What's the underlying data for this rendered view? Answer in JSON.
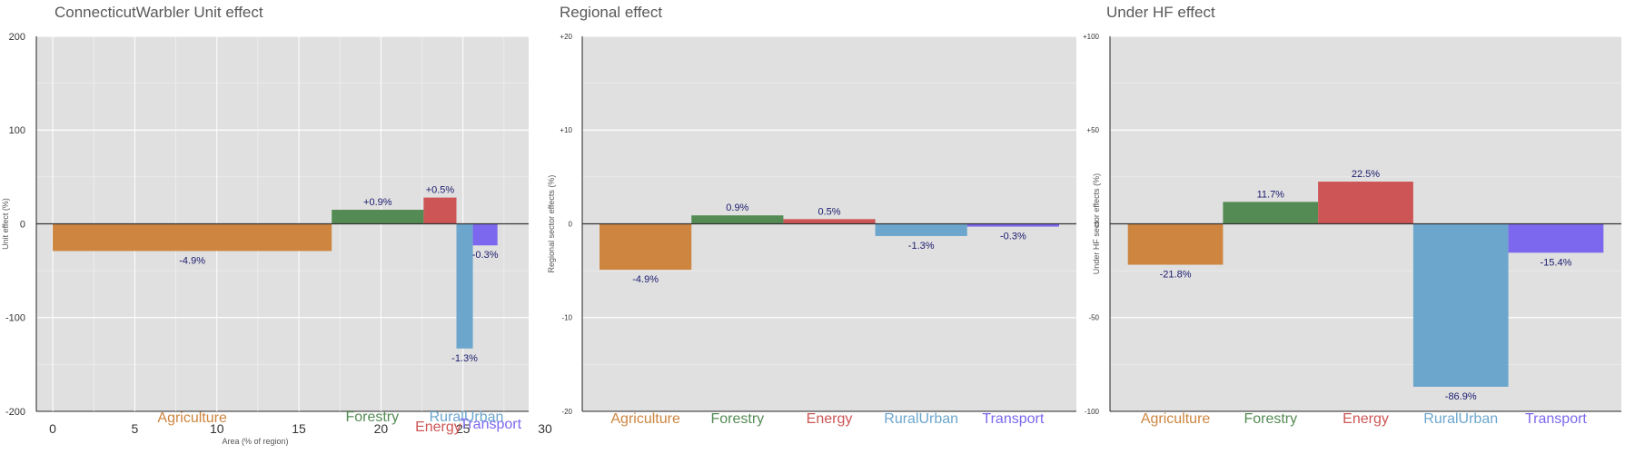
{
  "chart_data": [
    {
      "type": "bar",
      "title": "ConnecticutWarbler Unit effect",
      "xlabel": "Area (% of region)",
      "ylabel": "Unit effect (%)",
      "ylim": [
        -200,
        200
      ],
      "yticks": [
        "-200",
        "-100",
        "0",
        "100",
        "200"
      ],
      "xlim": [
        -1,
        29
      ],
      "xticks": [
        "0",
        "5",
        "10",
        "15",
        "20",
        "25",
        "30"
      ],
      "variable_width": true,
      "grid": true,
      "bars": [
        {
          "category": "Agriculture",
          "x_start": 0,
          "x_end": 17,
          "value": -29,
          "label": "-4.9%",
          "color": "#cd853f"
        },
        {
          "category": "Forestry",
          "x_start": 17,
          "x_end": 22.6,
          "value": 15,
          "label": "+0.9%",
          "color": "#548b54"
        },
        {
          "category": "Energy",
          "x_start": 22.6,
          "x_end": 24.6,
          "value": 28,
          "label": "+0.5%",
          "color": "#cd5555"
        },
        {
          "category": "RuralUrban",
          "x_start": 24.6,
          "x_end": 25.6,
          "value": -133,
          "label": "-1.3%",
          "color": "#6ca6cd"
        },
        {
          "category": "Transport",
          "x_start": 25.6,
          "x_end": 27.1,
          "value": -23,
          "label": "-0.3%",
          "color": "#7b68ee"
        }
      ]
    },
    {
      "type": "bar",
      "title": "Regional effect",
      "xlabel": "",
      "ylabel": "Regional sector effects (%)",
      "ylim": [
        -20,
        20
      ],
      "yticks": [
        "-20",
        "-10",
        "0",
        "+10",
        "+20"
      ],
      "grid": true,
      "bars": [
        {
          "category": "Agriculture",
          "value": -4.9,
          "label": "-4.9%",
          "color": "#cd853f"
        },
        {
          "category": "Forestry",
          "value": 0.9,
          "label": "0.9%",
          "color": "#548b54"
        },
        {
          "category": "Energy",
          "value": 0.5,
          "label": "0.5%",
          "color": "#cd5555"
        },
        {
          "category": "RuralUrban",
          "value": -1.3,
          "label": "-1.3%",
          "color": "#6ca6cd"
        },
        {
          "category": "Transport",
          "value": -0.3,
          "label": "-0.3%",
          "color": "#7b68ee"
        }
      ]
    },
    {
      "type": "bar",
      "title": "Under HF effect",
      "xlabel": "",
      "ylabel": "Under HF sector effects (%)",
      "ylim": [
        -100,
        100
      ],
      "yticks": [
        "-100",
        "-50",
        "0",
        "+50",
        "+100"
      ],
      "grid": true,
      "bars": [
        {
          "category": "Agriculture",
          "value": -21.8,
          "label": "-21.8%",
          "color": "#cd853f"
        },
        {
          "category": "Forestry",
          "value": 11.7,
          "label": "11.7%",
          "color": "#548b54"
        },
        {
          "category": "Energy",
          "value": 22.5,
          "label": "22.5%",
          "color": "#cd5555"
        },
        {
          "category": "RuralUrban",
          "value": -86.9,
          "label": "-86.9%",
          "color": "#6ca6cd"
        },
        {
          "category": "Transport",
          "value": -15.4,
          "label": "-15.4%",
          "color": "#7b68ee"
        }
      ]
    }
  ]
}
